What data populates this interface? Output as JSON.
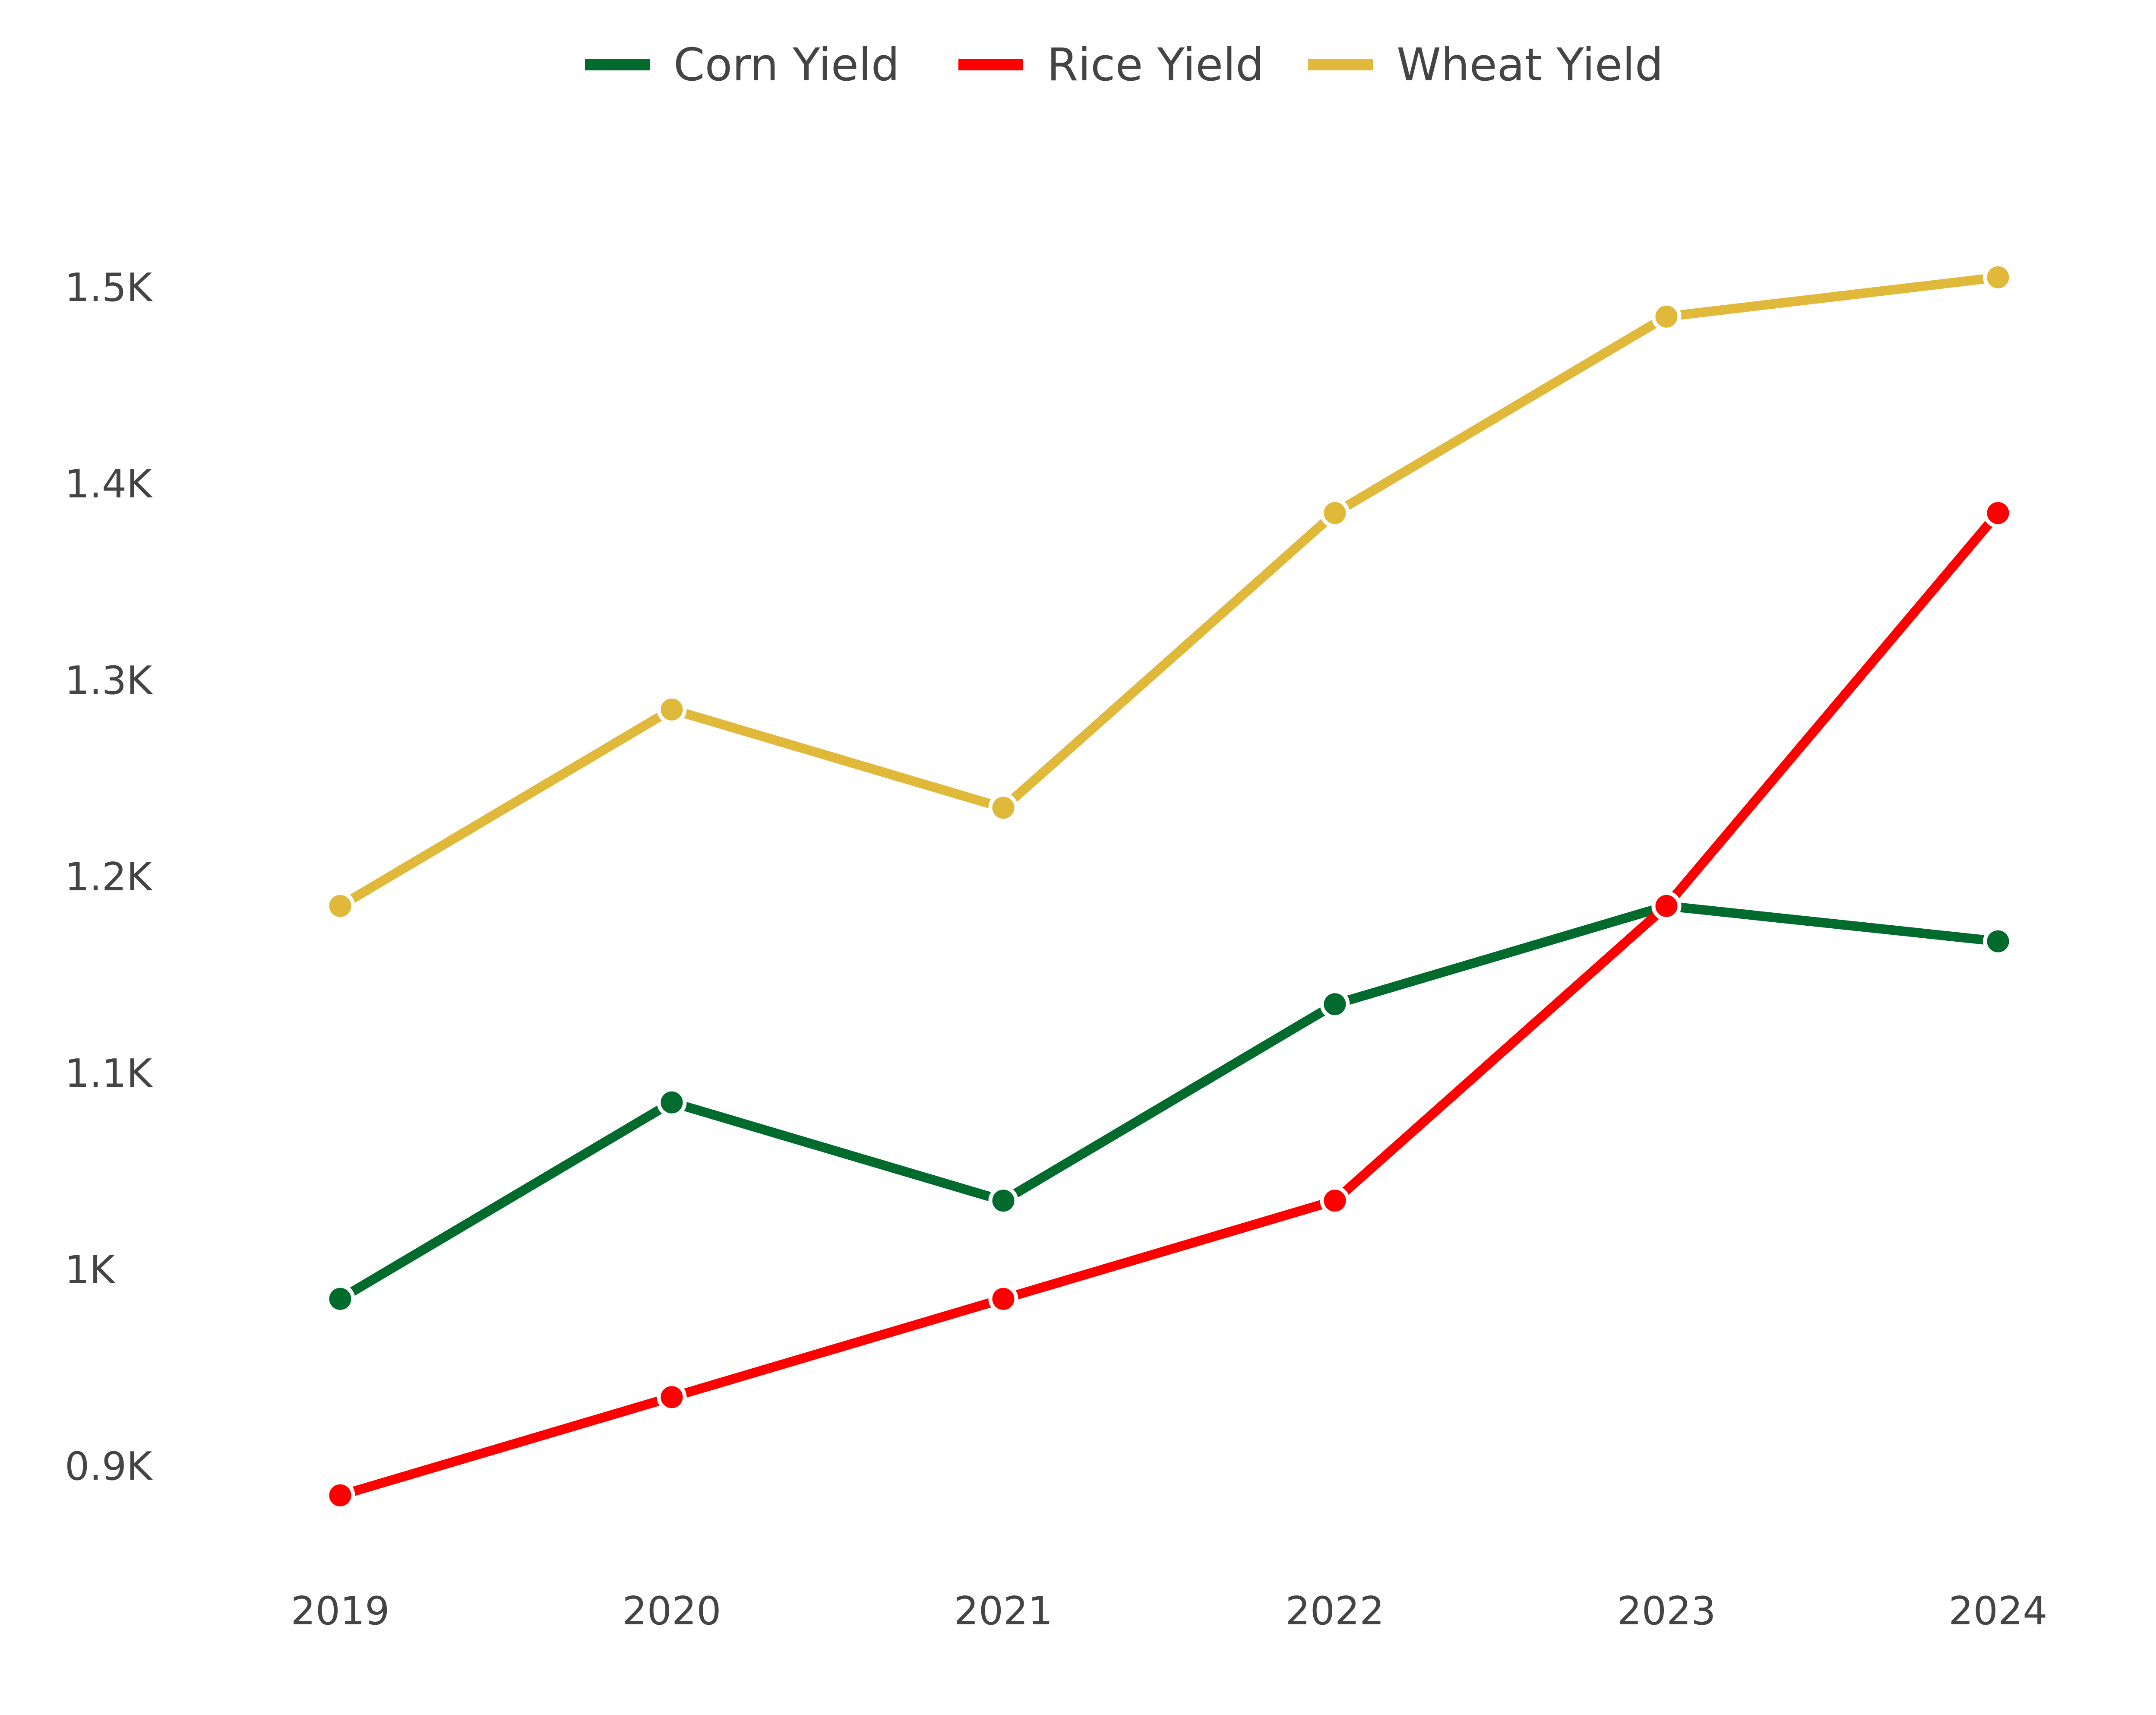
{
  "chart_data": {
    "type": "line",
    "title": "",
    "xlabel": "",
    "ylabel": "",
    "categories": [
      "2019",
      "2020",
      "2021",
      "2022",
      "2023",
      "2024"
    ],
    "ylim": [
      850,
      1550
    ],
    "yticks": [
      900,
      1000,
      1100,
      1200,
      1300,
      1400,
      1500
    ],
    "ytick_labels": [
      "0.9K",
      "1K",
      "1.1K",
      "1.2K",
      "1.3K",
      "1.4K",
      "1.5K"
    ],
    "grid": false,
    "legend_position": "top-center",
    "series": [
      {
        "name": "Corn Yield",
        "color": "#006b2d",
        "values": [
          985,
          1085,
          1035,
          1135,
          1185,
          1167
        ]
      },
      {
        "name": "Rice Yield",
        "color": "#ff0000",
        "values": [
          885,
          935,
          985,
          1035,
          1185,
          1385
        ]
      },
      {
        "name": "Wheat Yield",
        "color": "#e0b83a",
        "values": [
          1185,
          1285,
          1235,
          1385,
          1485,
          1505
        ]
      }
    ]
  }
}
